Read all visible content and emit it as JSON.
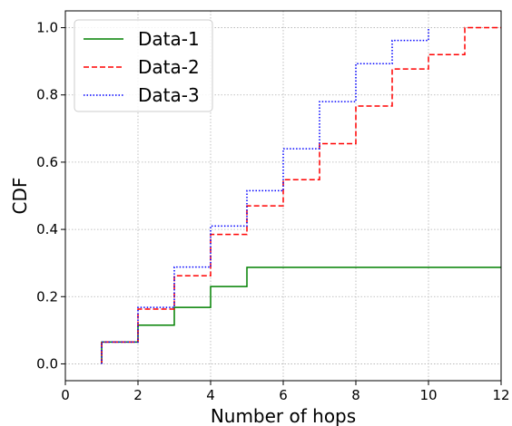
{
  "chart_data": {
    "type": "line",
    "step": "post",
    "xlabel": "Number of hops",
    "ylabel": "CDF",
    "xlim": [
      0,
      12
    ],
    "ylim": [
      -0.05,
      1.05
    ],
    "xticks": [
      0,
      2,
      4,
      6,
      8,
      10,
      12
    ],
    "yticks": [
      0.0,
      0.2,
      0.4,
      0.6,
      0.8,
      1.0
    ],
    "xtick_labels": [
      "0",
      "2",
      "4",
      "6",
      "8",
      "10",
      "12"
    ],
    "ytick_labels": [
      "0.0",
      "0.2",
      "0.4",
      "0.6",
      "0.8",
      "1.0"
    ],
    "grid": true,
    "legend_position": "top-left",
    "series": [
      {
        "name": "Data-1",
        "color": "#008000",
        "style": "solid",
        "x": [
          1,
          2,
          3,
          4,
          5,
          12
        ],
        "y": [
          0.065,
          0.115,
          0.168,
          0.23,
          0.287,
          0.287
        ]
      },
      {
        "name": "Data-2",
        "color": "#ff0000",
        "style": "dashed",
        "x": [
          1,
          2,
          3,
          4,
          5,
          6,
          7,
          8,
          9,
          10,
          11,
          12
        ],
        "y": [
          0.065,
          0.163,
          0.262,
          0.385,
          0.47,
          0.548,
          0.655,
          0.767,
          0.877,
          0.92,
          1.0,
          1.0
        ]
      },
      {
        "name": "Data-3",
        "color": "#0000ff",
        "style": "dotted",
        "x": [
          1,
          2,
          3,
          4,
          5,
          6,
          7,
          8,
          9,
          10
        ],
        "y": [
          0.065,
          0.168,
          0.288,
          0.41,
          0.515,
          0.64,
          0.78,
          0.893,
          0.962,
          1.0
        ]
      }
    ]
  }
}
